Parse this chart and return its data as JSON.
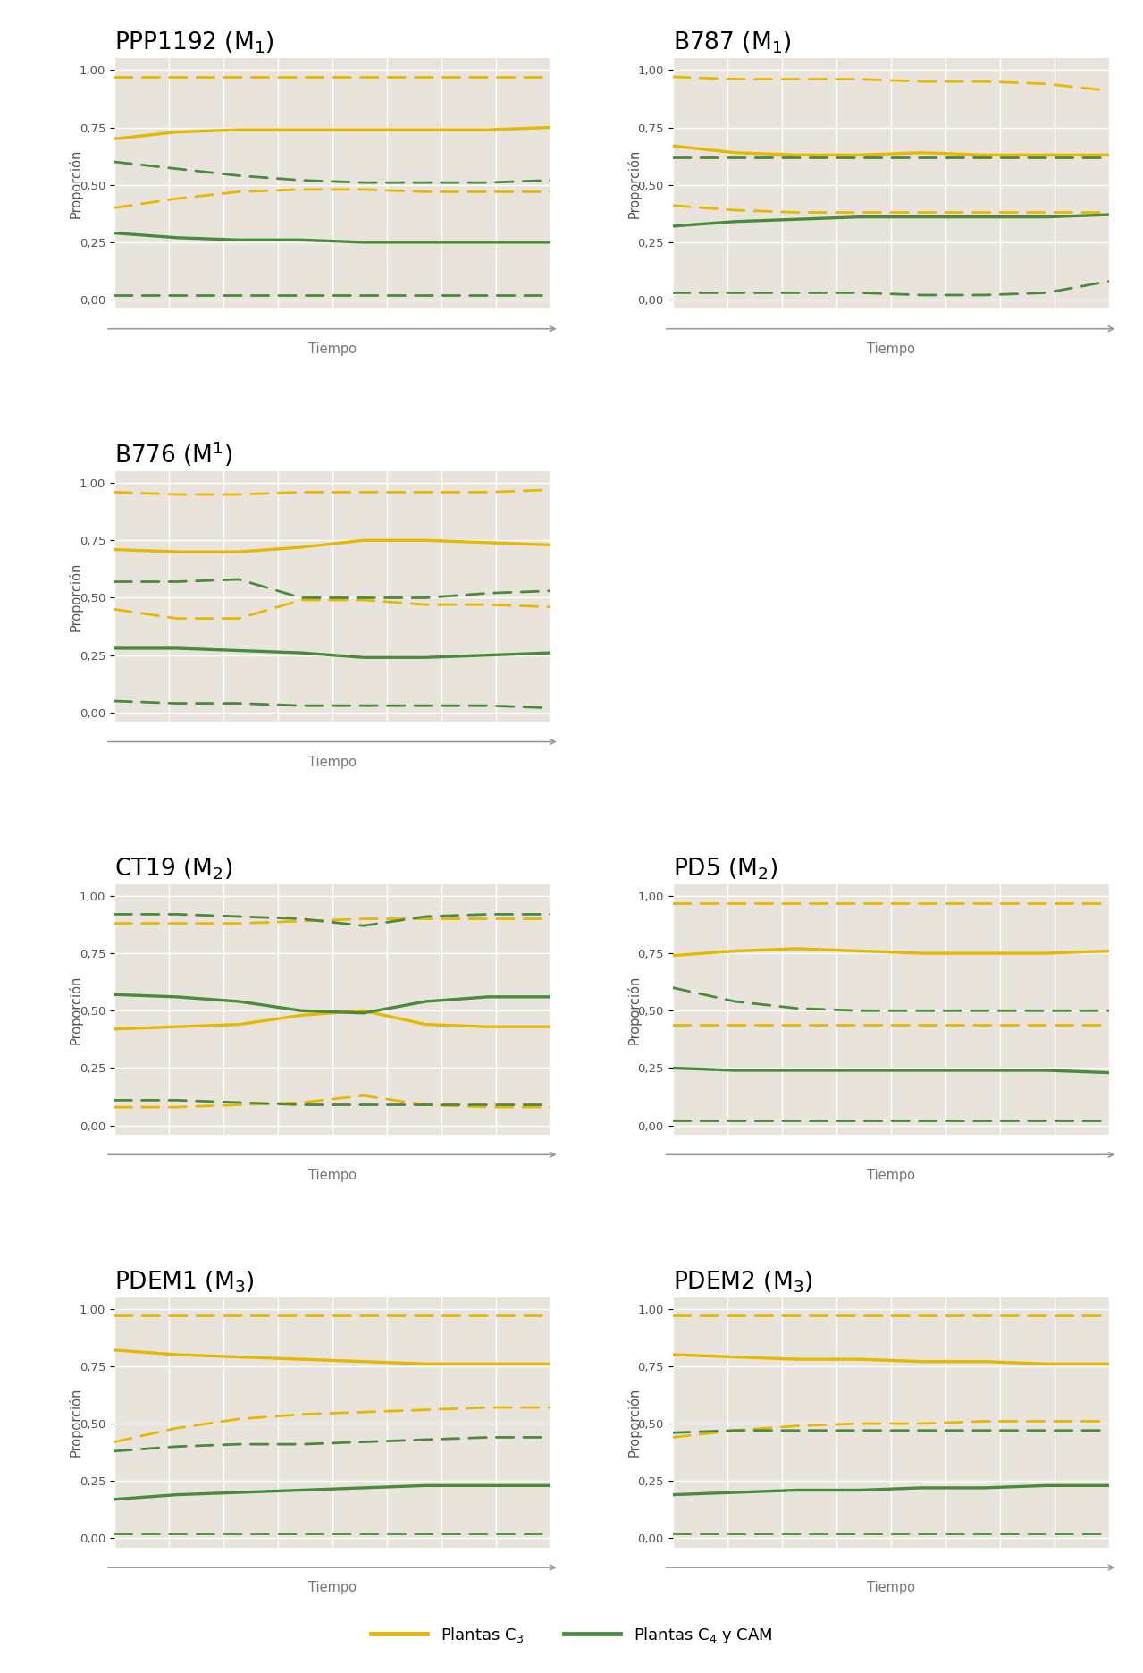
{
  "panels": [
    {
      "title": "PPP1192 (M",
      "title_sub": "1",
      "superscript": false,
      "row": 0,
      "col": 0,
      "yellow_mean": [
        0.7,
        0.73,
        0.74,
        0.74,
        0.74,
        0.74,
        0.74,
        0.75
      ],
      "yellow_lo": [
        0.4,
        0.44,
        0.47,
        0.48,
        0.48,
        0.47,
        0.47,
        0.47
      ],
      "yellow_hi": [
        0.97,
        0.97,
        0.97,
        0.97,
        0.97,
        0.97,
        0.97,
        0.97
      ],
      "green_mean": [
        0.29,
        0.27,
        0.26,
        0.26,
        0.25,
        0.25,
        0.25,
        0.25
      ],
      "green_lo": [
        0.02,
        0.02,
        0.02,
        0.02,
        0.02,
        0.02,
        0.02,
        0.02
      ],
      "green_hi": [
        0.6,
        0.57,
        0.54,
        0.52,
        0.51,
        0.51,
        0.51,
        0.52
      ]
    },
    {
      "title": "B787 (M",
      "title_sub": "1",
      "superscript": false,
      "row": 0,
      "col": 1,
      "yellow_mean": [
        0.67,
        0.64,
        0.63,
        0.63,
        0.64,
        0.63,
        0.63,
        0.63
      ],
      "yellow_lo": [
        0.41,
        0.39,
        0.38,
        0.38,
        0.38,
        0.38,
        0.38,
        0.38
      ],
      "yellow_hi": [
        0.97,
        0.96,
        0.96,
        0.96,
        0.95,
        0.95,
        0.94,
        0.91
      ],
      "green_mean": [
        0.32,
        0.34,
        0.35,
        0.36,
        0.36,
        0.36,
        0.36,
        0.37
      ],
      "green_lo": [
        0.03,
        0.03,
        0.03,
        0.03,
        0.02,
        0.02,
        0.03,
        0.08
      ],
      "green_hi": [
        0.62,
        0.62,
        0.62,
        0.62,
        0.62,
        0.62,
        0.62,
        0.62
      ]
    },
    {
      "title": "B776 (M",
      "title_sub": "1",
      "superscript": true,
      "row": 1,
      "col": 0,
      "yellow_mean": [
        0.71,
        0.7,
        0.7,
        0.72,
        0.75,
        0.75,
        0.74,
        0.73
      ],
      "yellow_lo": [
        0.45,
        0.41,
        0.41,
        0.49,
        0.49,
        0.47,
        0.47,
        0.46
      ],
      "yellow_hi": [
        0.96,
        0.95,
        0.95,
        0.96,
        0.96,
        0.96,
        0.96,
        0.97
      ],
      "green_mean": [
        0.28,
        0.28,
        0.27,
        0.26,
        0.24,
        0.24,
        0.25,
        0.26
      ],
      "green_lo": [
        0.05,
        0.04,
        0.04,
        0.03,
        0.03,
        0.03,
        0.03,
        0.02
      ],
      "green_hi": [
        0.57,
        0.57,
        0.58,
        0.5,
        0.5,
        0.5,
        0.52,
        0.53
      ]
    },
    {
      "title": "CT19 (M",
      "title_sub": "2",
      "superscript": false,
      "row": 2,
      "col": 0,
      "yellow_mean": [
        0.42,
        0.43,
        0.44,
        0.48,
        0.5,
        0.44,
        0.43,
        0.43
      ],
      "yellow_lo": [
        0.08,
        0.08,
        0.09,
        0.1,
        0.13,
        0.09,
        0.08,
        0.08
      ],
      "yellow_hi": [
        0.88,
        0.88,
        0.88,
        0.89,
        0.9,
        0.9,
        0.9,
        0.9
      ],
      "green_mean": [
        0.57,
        0.56,
        0.54,
        0.5,
        0.49,
        0.54,
        0.56,
        0.56
      ],
      "green_lo": [
        0.11,
        0.11,
        0.1,
        0.09,
        0.09,
        0.09,
        0.09,
        0.09
      ],
      "green_hi": [
        0.92,
        0.92,
        0.91,
        0.9,
        0.87,
        0.91,
        0.92,
        0.92
      ]
    },
    {
      "title": "PD5 (M",
      "title_sub": "2",
      "superscript": false,
      "row": 2,
      "col": 1,
      "yellow_mean": [
        0.74,
        0.76,
        0.77,
        0.76,
        0.75,
        0.75,
        0.75,
        0.76
      ],
      "yellow_lo": [
        0.44,
        0.44,
        0.44,
        0.44,
        0.44,
        0.44,
        0.44,
        0.44
      ],
      "yellow_hi": [
        0.97,
        0.97,
        0.97,
        0.97,
        0.97,
        0.97,
        0.97,
        0.97
      ],
      "green_mean": [
        0.25,
        0.24,
        0.24,
        0.24,
        0.24,
        0.24,
        0.24,
        0.23
      ],
      "green_lo": [
        0.02,
        0.02,
        0.02,
        0.02,
        0.02,
        0.02,
        0.02,
        0.02
      ],
      "green_hi": [
        0.6,
        0.54,
        0.51,
        0.5,
        0.5,
        0.5,
        0.5,
        0.5
      ]
    },
    {
      "title": "PDEM1 (M",
      "title_sub": "3",
      "superscript": false,
      "row": 3,
      "col": 0,
      "yellow_mean": [
        0.82,
        0.8,
        0.79,
        0.78,
        0.77,
        0.76,
        0.76,
        0.76
      ],
      "yellow_lo": [
        0.42,
        0.48,
        0.52,
        0.54,
        0.55,
        0.56,
        0.57,
        0.57
      ],
      "yellow_hi": [
        0.97,
        0.97,
        0.97,
        0.97,
        0.97,
        0.97,
        0.97,
        0.97
      ],
      "green_mean": [
        0.17,
        0.19,
        0.2,
        0.21,
        0.22,
        0.23,
        0.23,
        0.23
      ],
      "green_lo": [
        0.02,
        0.02,
        0.02,
        0.02,
        0.02,
        0.02,
        0.02,
        0.02
      ],
      "green_hi": [
        0.38,
        0.4,
        0.41,
        0.41,
        0.42,
        0.43,
        0.44,
        0.44
      ]
    },
    {
      "title": "PDEM2 (M",
      "title_sub": "3",
      "superscript": false,
      "row": 3,
      "col": 1,
      "yellow_mean": [
        0.8,
        0.79,
        0.78,
        0.78,
        0.77,
        0.77,
        0.76,
        0.76
      ],
      "yellow_lo": [
        0.44,
        0.47,
        0.49,
        0.5,
        0.5,
        0.51,
        0.51,
        0.51
      ],
      "yellow_hi": [
        0.97,
        0.97,
        0.97,
        0.97,
        0.97,
        0.97,
        0.97,
        0.97
      ],
      "green_mean": [
        0.19,
        0.2,
        0.21,
        0.21,
        0.22,
        0.22,
        0.23,
        0.23
      ],
      "green_lo": [
        0.02,
        0.02,
        0.02,
        0.02,
        0.02,
        0.02,
        0.02,
        0.02
      ],
      "green_hi": [
        0.46,
        0.47,
        0.47,
        0.47,
        0.47,
        0.47,
        0.47,
        0.47
      ]
    }
  ],
  "yellow_color": "#E8B800",
  "green_color": "#4A8A3C",
  "bg_color": "#E8E4DC",
  "grid_color": "#FFFFFF",
  "tick_labels": [
    "0,00",
    "0,25",
    "0,50",
    "0,75",
    "1,00"
  ],
  "tick_values": [
    0.0,
    0.25,
    0.5,
    0.75,
    1.0
  ],
  "ylabel": "Proporción",
  "xlabel": "Tiempo",
  "legend_yellow": "Plantas C$_3$",
  "legend_green": "Plantas C$_4$ y CAM",
  "fig_width": 12.79,
  "fig_height": 18.71
}
